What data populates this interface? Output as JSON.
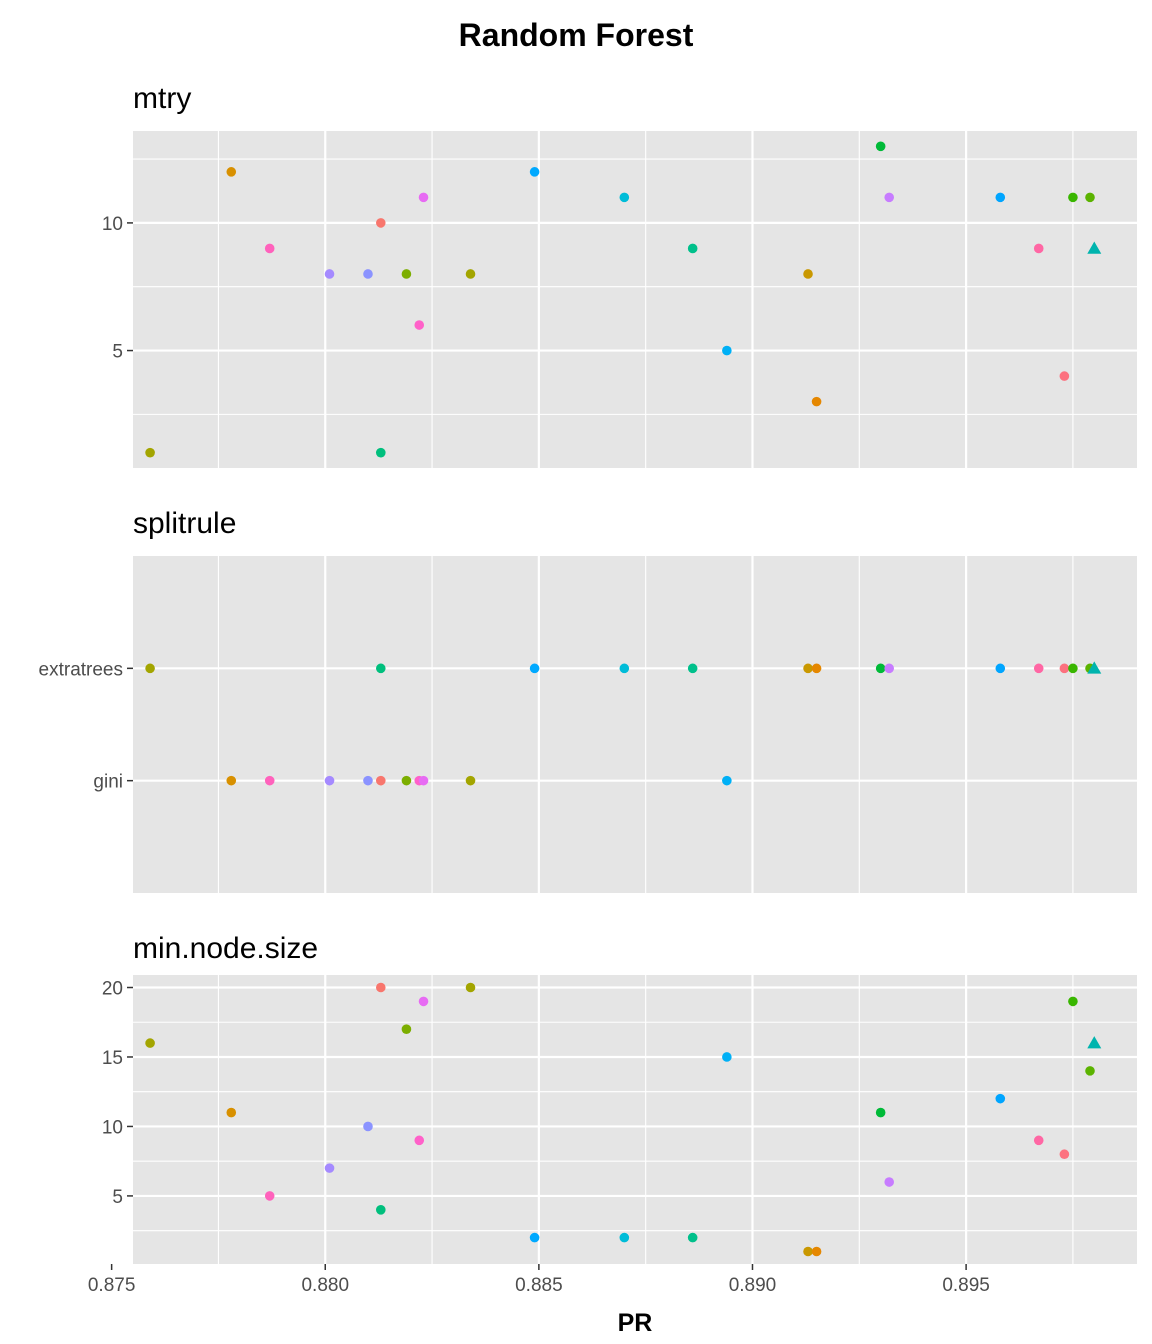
{
  "chart_data": {
    "type": "scatter",
    "title": "Random Forest",
    "xlabel": "PR",
    "xlim": [
      0.8755,
      0.899
    ],
    "x_ticks": [
      0.875,
      0.88,
      0.885,
      0.89,
      0.895
    ],
    "x_tick_labels": [
      "0.875",
      "0.880",
      "0.885",
      "0.890",
      "0.895"
    ],
    "grid": true,
    "legend": "none",
    "panels": [
      {
        "name": "mtry",
        "kind": "numeric",
        "ylim": [
          0.4,
          13.6
        ],
        "y_ticks": [
          5,
          10
        ],
        "y_tick_labels": [
          "5",
          "10"
        ],
        "y_minor": [
          2.5,
          7.5,
          12.5
        ]
      },
      {
        "name": "splitrule",
        "kind": "categorical",
        "categories": [
          "gini",
          "extratrees"
        ],
        "y_tick_labels": [
          "extratrees",
          "gini"
        ]
      },
      {
        "name": "min.node.size",
        "kind": "numeric",
        "ylim": [
          0.1,
          20.9
        ],
        "y_ticks": [
          5,
          10,
          15,
          20
        ],
        "y_tick_labels": [
          "5",
          "10",
          "15",
          "20"
        ],
        "y_minor": [
          2.5,
          7.5,
          12.5,
          17.5
        ]
      }
    ],
    "points": [
      {
        "pr": 0.8759,
        "mtry": 1,
        "splitrule": "extratrees",
        "min_node_size": 16,
        "color": "#A3A500",
        "shape": "circle"
      },
      {
        "pr": 0.8778,
        "mtry": 12,
        "splitrule": "gini",
        "min_node_size": 11,
        "color": "#D89000",
        "shape": "circle"
      },
      {
        "pr": 0.8787,
        "mtry": 9,
        "splitrule": "gini",
        "min_node_size": 5,
        "color": "#FF62BC",
        "shape": "circle"
      },
      {
        "pr": 0.8801,
        "mtry": 8,
        "splitrule": "gini",
        "min_node_size": 7,
        "color": "#A58AFF",
        "shape": "circle"
      },
      {
        "pr": 0.881,
        "mtry": 8,
        "splitrule": "gini",
        "min_node_size": 10,
        "color": "#8B93FF",
        "shape": "circle"
      },
      {
        "pr": 0.8813,
        "mtry": 10,
        "splitrule": "gini",
        "min_node_size": 20,
        "color": "#F8766D",
        "shape": "circle"
      },
      {
        "pr": 0.8813,
        "mtry": 1,
        "splitrule": "extratrees",
        "min_node_size": 4,
        "color": "#00BF7D",
        "shape": "circle"
      },
      {
        "pr": 0.8819,
        "mtry": 8,
        "splitrule": "gini",
        "min_node_size": 17,
        "color": "#7CAE00",
        "shape": "circle"
      },
      {
        "pr": 0.8822,
        "mtry": 6,
        "splitrule": "gini",
        "min_node_size": 9,
        "color": "#FF61C9",
        "shape": "circle"
      },
      {
        "pr": 0.8823,
        "mtry": 11,
        "splitrule": "gini",
        "min_node_size": 19,
        "color": "#E76BF3",
        "shape": "circle"
      },
      {
        "pr": 0.8834,
        "mtry": 8,
        "splitrule": "gini",
        "min_node_size": 20,
        "color": "#A3A500",
        "shape": "circle"
      },
      {
        "pr": 0.8849,
        "mtry": 12,
        "splitrule": "extratrees",
        "min_node_size": 2,
        "color": "#00A9FF",
        "shape": "circle"
      },
      {
        "pr": 0.887,
        "mtry": 11,
        "splitrule": "extratrees",
        "min_node_size": 2,
        "color": "#00BCD8",
        "shape": "circle"
      },
      {
        "pr": 0.8886,
        "mtry": 9,
        "splitrule": "extratrees",
        "min_node_size": 2,
        "color": "#00C08B",
        "shape": "circle"
      },
      {
        "pr": 0.8894,
        "mtry": 5,
        "splitrule": "gini",
        "min_node_size": 15,
        "color": "#00B0F6",
        "shape": "circle"
      },
      {
        "pr": 0.8913,
        "mtry": 8,
        "splitrule": "extratrees",
        "min_node_size": 1,
        "color": "#C99800",
        "shape": "circle"
      },
      {
        "pr": 0.8915,
        "mtry": 3,
        "splitrule": "extratrees",
        "min_node_size": 1,
        "color": "#E58700",
        "shape": "circle"
      },
      {
        "pr": 0.893,
        "mtry": 13,
        "splitrule": "extratrees",
        "min_node_size": 11,
        "color": "#00BA38",
        "shape": "circle"
      },
      {
        "pr": 0.8932,
        "mtry": 11,
        "splitrule": "extratrees",
        "min_node_size": 6,
        "color": "#C77CFF",
        "shape": "circle"
      },
      {
        "pr": 0.8958,
        "mtry": 11,
        "splitrule": "extratrees",
        "min_node_size": 12,
        "color": "#00A5FF",
        "shape": "circle"
      },
      {
        "pr": 0.8967,
        "mtry": 9,
        "splitrule": "extratrees",
        "min_node_size": 9,
        "color": "#FF67A4",
        "shape": "circle"
      },
      {
        "pr": 0.8973,
        "mtry": 4,
        "splitrule": "extratrees",
        "min_node_size": 8,
        "color": "#FC717F",
        "shape": "circle"
      },
      {
        "pr": 0.8975,
        "mtry": 11,
        "splitrule": "extratrees",
        "min_node_size": 19,
        "color": "#39B600",
        "shape": "circle"
      },
      {
        "pr": 0.8979,
        "mtry": 11,
        "splitrule": "extratrees",
        "min_node_size": 14,
        "color": "#5BB300",
        "shape": "circle"
      },
      {
        "pr": 0.898,
        "mtry": 9,
        "splitrule": "extratrees",
        "min_node_size": 16,
        "color": "#00B4AE",
        "shape": "triangle"
      }
    ]
  }
}
